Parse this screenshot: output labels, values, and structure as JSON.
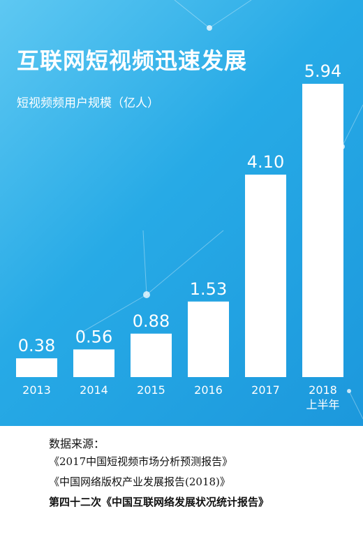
{
  "title": "互联网短视频迅速发展",
  "subtitle": "短视频频用户规模（亿人）",
  "chart_data": {
    "type": "bar",
    "categories": [
      "2013",
      "2014",
      "2015",
      "2016",
      "2017",
      "2018"
    ],
    "category_sublabels": [
      "",
      "",
      "",
      "",
      "",
      "上半年"
    ],
    "values": [
      0.38,
      0.56,
      0.88,
      1.53,
      4.1,
      5.94
    ],
    "value_labels": [
      "0.38",
      "0.56",
      "0.88",
      "1.53",
      "4.10",
      "5.94"
    ],
    "title": "互联网短视频迅速发展",
    "ylabel": "短视频频用户规模（亿人）",
    "ylim": [
      0,
      5.94
    ],
    "bar_color": "#ffffff",
    "background_color": "#27aae6",
    "grid": false
  },
  "source": {
    "label": "数据来源：",
    "lines": [
      "《2017中国短视频市场分析预测报告》",
      "《中国网络版权产业发展报告(2018)》",
      "第四十二次《中国互联网络发展状况统计报告》"
    ]
  }
}
